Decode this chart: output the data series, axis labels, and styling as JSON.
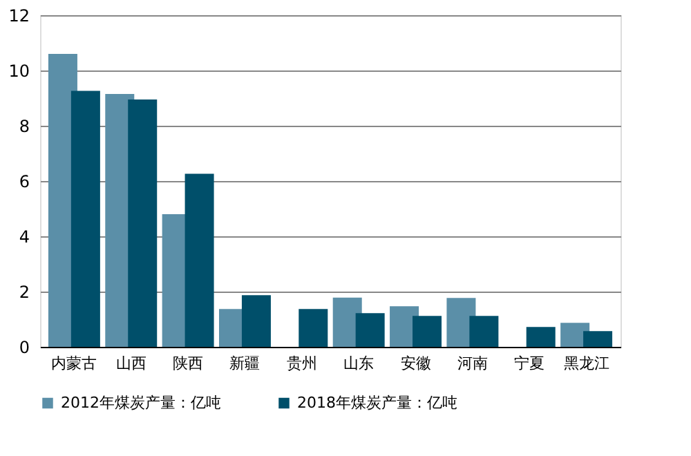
{
  "chart_data": {
    "type": "bar",
    "categories": [
      "内蒙古",
      "山西",
      "陕西",
      "新疆",
      "贵州",
      "山东",
      "安徽",
      "河南",
      "宁夏",
      "黑龙江"
    ],
    "series": [
      {
        "name": "2012年煤炭产量：亿吨",
        "color": "#5b8fa8",
        "values": [
          10.6,
          9.15,
          4.8,
          1.37,
          null,
          1.78,
          1.47,
          1.77,
          null,
          0.87
        ]
      },
      {
        "name": "2018年煤炭产量：亿吨",
        "color": "#004f6a",
        "values": [
          9.26,
          8.95,
          6.26,
          1.87,
          1.37,
          1.22,
          1.12,
          1.12,
          0.72,
          0.57
        ]
      }
    ],
    "ylim": [
      0,
      12
    ],
    "yticks": [
      0,
      2,
      4,
      6,
      8,
      10,
      12
    ],
    "grid": "y",
    "legend": "bottom"
  }
}
